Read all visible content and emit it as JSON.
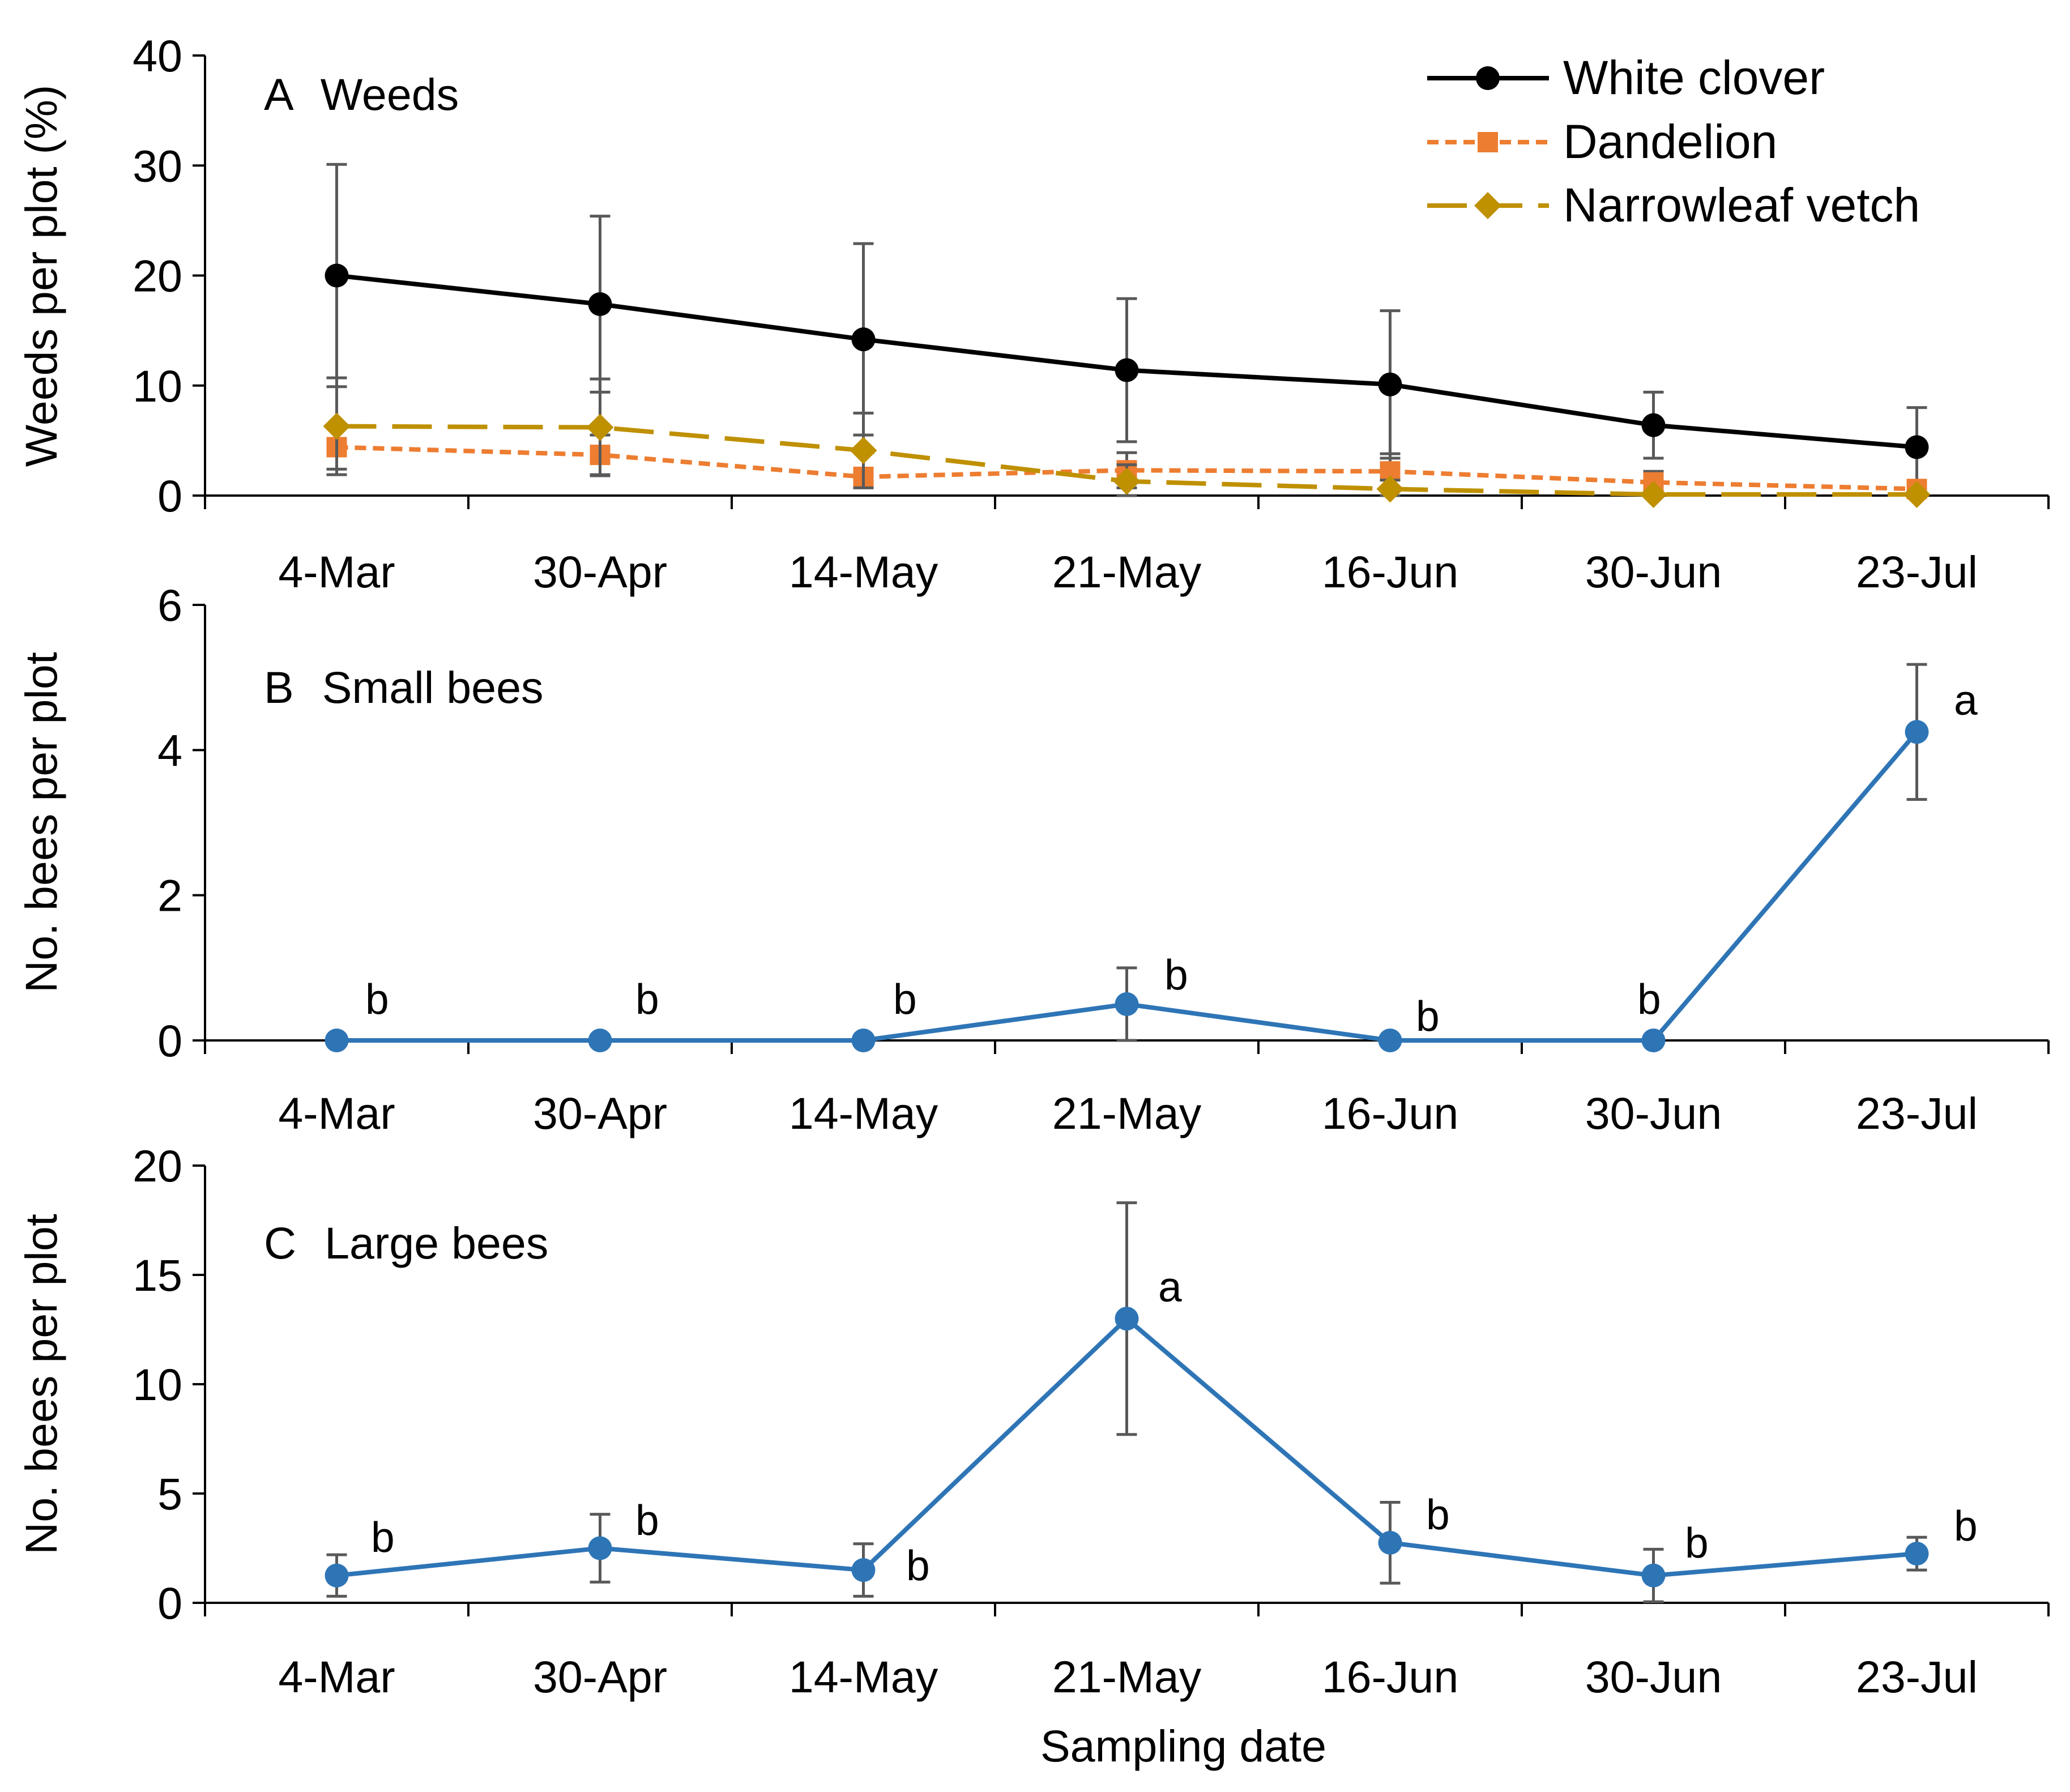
{
  "chart_data": [
    {
      "panel": "A",
      "type": "line",
      "title": "Weeds",
      "xlabel": "",
      "ylabel": "Weeds per plot (%)",
      "categories": [
        "4-Mar",
        "30-Apr",
        "14-May",
        "21-May",
        "16-Jun",
        "30-Jun",
        "23-Jul"
      ],
      "ylim": [
        0,
        40
      ],
      "yticks": [
        0,
        10,
        20,
        30,
        40
      ],
      "grid": false,
      "legend": "top-right",
      "series": [
        {
          "name": "White clover",
          "color": "#000000",
          "line_style": "solid",
          "marker": "circle",
          "values": [
            20.0,
            17.4,
            14.2,
            11.4,
            10.1,
            6.4,
            4.4
          ],
          "errors": [
            10.1,
            8.0,
            8.7,
            6.5,
            6.7,
            3.0,
            3.6
          ]
        },
        {
          "name": "Dandelion",
          "color": "#ED7D31",
          "line_style": "dotted",
          "marker": "square",
          "values": [
            4.4,
            3.7,
            1.7,
            2.3,
            2.2,
            1.2,
            0.6
          ],
          "errors": [
            2.0,
            1.8,
            0.8,
            1.6,
            1.6,
            1.0,
            0.5
          ]
        },
        {
          "name": "Narrowleaf vetch",
          "color": "#BF9000",
          "line_style": "long-dash",
          "marker": "diamond",
          "values": [
            6.3,
            6.2,
            4.1,
            1.3,
            0.6,
            0.1,
            0.1
          ],
          "errors": [
            4.4,
            4.4,
            3.4,
            1.5,
            0.8,
            0.2,
            0.2
          ]
        }
      ]
    },
    {
      "panel": "B",
      "type": "line",
      "title": "Small bees",
      "xlabel": "",
      "ylabel": "No. bees per plot",
      "categories": [
        "4-Mar",
        "30-Apr",
        "14-May",
        "21-May",
        "16-Jun",
        "30-Jun",
        "23-Jul"
      ],
      "ylim": [
        0,
        6
      ],
      "yticks": [
        0,
        2,
        4,
        6
      ],
      "grid": false,
      "series": [
        {
          "name": "Small bees",
          "color": "#2E75B6",
          "line_style": "solid",
          "marker": "circle",
          "values": [
            0,
            0,
            0,
            0.5,
            0,
            0,
            4.25
          ],
          "errors": [
            0,
            0,
            0,
            0.5,
            0,
            0,
            0.93
          ],
          "letters": [
            "b",
            "b",
            "b",
            "b",
            "b",
            "b",
            "a"
          ]
        }
      ]
    },
    {
      "panel": "C",
      "type": "line",
      "title": "Large bees",
      "xlabel": "Sampling date",
      "ylabel": "No. bees per plot",
      "categories": [
        "4-Mar",
        "30-Apr",
        "14-May",
        "21-May",
        "16-Jun",
        "30-Jun",
        "23-Jul"
      ],
      "ylim": [
        0,
        20
      ],
      "yticks": [
        0,
        5,
        10,
        15,
        20
      ],
      "grid": false,
      "series": [
        {
          "name": "Large bees",
          "color": "#2E75B6",
          "line_style": "solid",
          "marker": "circle",
          "values": [
            1.25,
            2.5,
            1.5,
            13.0,
            2.75,
            1.25,
            2.25
          ],
          "errors": [
            0.95,
            1.55,
            1.2,
            5.3,
            1.85,
            1.2,
            0.75
          ],
          "letters": [
            "b",
            "b",
            "b",
            "a",
            "b",
            "b",
            "b"
          ]
        }
      ]
    }
  ]
}
